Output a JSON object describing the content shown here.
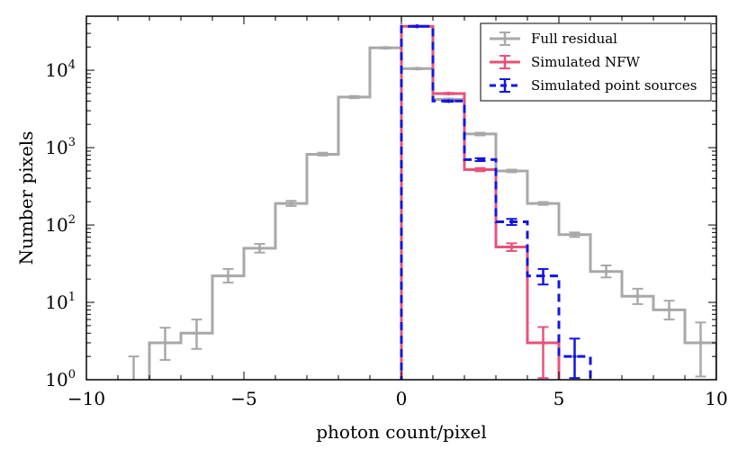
{
  "chart_data": {
    "type": "step-histogram",
    "xlabel": "photon count/pixel",
    "ylabel": "Number pixels",
    "xlim": [
      -10,
      10
    ],
    "ylim": [
      1,
      50000
    ],
    "yscale": "log",
    "x_ticks": [
      -10,
      -5,
      0,
      5,
      10
    ],
    "x_tick_labels": [
      "−10",
      "−5",
      "0",
      "5",
      "10"
    ],
    "y_ticks": [
      1,
      10,
      100,
      1000,
      10000
    ],
    "y_tick_labels": [
      {
        "base": "10",
        "exp": "0"
      },
      {
        "base": "10",
        "exp": "1"
      },
      {
        "base": "10",
        "exp": "2"
      },
      {
        "base": "10",
        "exp": "3"
      },
      {
        "base": "10",
        "exp": "4"
      }
    ],
    "reference_line": {
      "x": 0,
      "style": "dashed",
      "color": "#808080"
    },
    "legend": {
      "position": "top-right",
      "entries": [
        {
          "label": "Full residual",
          "color": "#a8a8a8",
          "style": "solid"
        },
        {
          "label": "Simulated NFW",
          "color": "#e8527a",
          "style": "solid"
        },
        {
          "label": "Simulated point sources",
          "color": "#1414e0",
          "style": "dashed"
        }
      ]
    },
    "series": [
      {
        "name": "Full residual",
        "color": "#a8a8a8",
        "style": "solid",
        "edges": [
          -9,
          -8,
          -7,
          -6,
          -5,
          -4,
          -3,
          -2,
          -1,
          0,
          1,
          2,
          3,
          4,
          5,
          6,
          7,
          8,
          9,
          10
        ],
        "values": [
          0.9,
          3,
          4,
          22,
          50,
          190,
          820,
          4500,
          19500,
          10500,
          4200,
          1500,
          500,
          190,
          75,
          25,
          12,
          8,
          3
        ],
        "error_hi": [
          2,
          4.7,
          6,
          27,
          57,
          205,
          860,
          4650,
          19900,
          10700,
          4300,
          1560,
          520,
          198,
          80,
          30,
          15,
          10.5,
          5.5
        ],
        "error_lo": [
          0.5,
          1.8,
          2.5,
          18,
          44,
          176,
          790,
          4360,
          19100,
          10300,
          4100,
          1440,
          480,
          182,
          70,
          21,
          9.5,
          6,
          1.1
        ]
      },
      {
        "name": "Simulated NFW",
        "color": "#e8527a",
        "style": "solid",
        "edges": [
          0,
          1,
          2,
          3,
          4,
          5
        ],
        "values": [
          37000,
          5000,
          520,
          52,
          3
        ],
        "error_hi": [
          37400,
          5100,
          545,
          58,
          4.8
        ],
        "error_lo": [
          36600,
          4900,
          495,
          46,
          1.05
        ]
      },
      {
        "name": "Simulated point sources",
        "color": "#1414e0",
        "style": "dashed",
        "edges": [
          0,
          1,
          2,
          3,
          4,
          5,
          6
        ],
        "values": [
          37000,
          4000,
          700,
          110,
          22,
          2
        ],
        "error_hi": [
          37400,
          4080,
          730,
          120,
          27,
          3.4
        ],
        "error_lo": [
          36600,
          3920,
          670,
          100,
          17,
          1.05
        ]
      }
    ]
  }
}
